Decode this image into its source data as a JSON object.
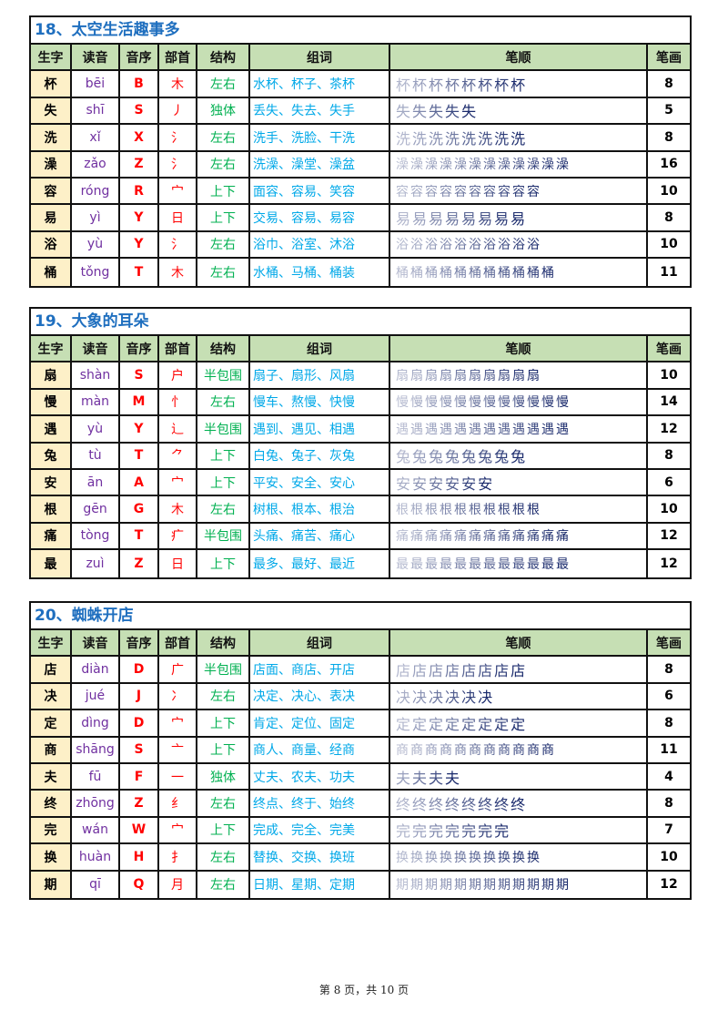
{
  "headers": [
    "生字",
    "读音",
    "音序",
    "部首",
    "结构",
    "组词",
    "笔顺",
    "笔画"
  ],
  "lessons": [
    {
      "title": "18、太空生活趣事多",
      "rows": [
        [
          "杯",
          "bēi",
          "B",
          "木",
          "左右",
          "水杯、杯子、茶杯",
          8
        ],
        [
          "失",
          "shī",
          "S",
          "丿",
          "独体",
          "丢失、失去、失手",
          5
        ],
        [
          "洗",
          "xǐ",
          "X",
          "氵",
          "左右",
          "洗手、洗脸、干洗",
          8
        ],
        [
          "澡",
          "zǎo",
          "Z",
          "氵",
          "左右",
          "洗澡、澡堂、澡盆",
          16
        ],
        [
          "容",
          "róng",
          "R",
          "宀",
          "上下",
          "面容、容易、笑容",
          10
        ],
        [
          "易",
          "yì",
          "Y",
          "日",
          "上下",
          "交易、容易、易容",
          8
        ],
        [
          "浴",
          "yù",
          "Y",
          "氵",
          "左右",
          "浴巾、浴室、沐浴",
          10
        ],
        [
          "桶",
          "tǒng",
          "T",
          "木",
          "左右",
          "水桶、马桶、桶装",
          11
        ]
      ]
    },
    {
      "title": "19、大象的耳朵",
      "rows": [
        [
          "扇",
          "shàn",
          "S",
          "户",
          "半包围",
          "扇子、扇形、风扇",
          10
        ],
        [
          "慢",
          "màn",
          "M",
          "忄",
          "左右",
          "慢车、熬慢、快慢",
          14
        ],
        [
          "遇",
          "yù",
          "Y",
          "辶",
          "半包围",
          "遇到、遇见、相遇",
          12
        ],
        [
          "兔",
          "tù",
          "T",
          "⺈",
          "上下",
          "白兔、兔子、灰兔",
          8
        ],
        [
          "安",
          "ān",
          "A",
          "宀",
          "上下",
          "平安、安全、安心",
          6
        ],
        [
          "根",
          "gēn",
          "G",
          "木",
          "左右",
          "树根、根本、根治",
          10
        ],
        [
          "痛",
          "tòng",
          "T",
          "疒",
          "半包围",
          "头痛、痛苦、痛心",
          12
        ],
        [
          "最",
          "zuì",
          "Z",
          "日",
          "上下",
          "最多、最好、最近",
          12
        ]
      ]
    },
    {
      "title": "20、蜘蛛开店",
      "rows": [
        [
          "店",
          "diàn",
          "D",
          "广",
          "半包围",
          "店面、商店、开店",
          8
        ],
        [
          "决",
          "jué",
          "J",
          "冫",
          "左右",
          "决定、决心、表决",
          6
        ],
        [
          "定",
          "dìng",
          "D",
          "宀",
          "上下",
          "肯定、定位、固定",
          8
        ],
        [
          "商",
          "shāng",
          "S",
          "亠",
          "上下",
          "商人、商量、经商",
          11
        ],
        [
          "夫",
          "fū",
          "F",
          "一",
          "独体",
          "丈夫、农夫、功夫",
          4
        ],
        [
          "终",
          "zhōng",
          "Z",
          "纟",
          "左右",
          "终点、终于、始终",
          8
        ],
        [
          "完",
          "wán",
          "W",
          "宀",
          "上下",
          "完成、完全、完美",
          7
        ],
        [
          "换",
          "huàn",
          "H",
          "扌",
          "左右",
          "替换、交换、换班",
          10
        ],
        [
          "期",
          "qī",
          "Q",
          "月",
          "左右",
          "日期、星期、定期",
          12
        ]
      ]
    }
  ],
  "footer": "第 8 页，共 10 页"
}
